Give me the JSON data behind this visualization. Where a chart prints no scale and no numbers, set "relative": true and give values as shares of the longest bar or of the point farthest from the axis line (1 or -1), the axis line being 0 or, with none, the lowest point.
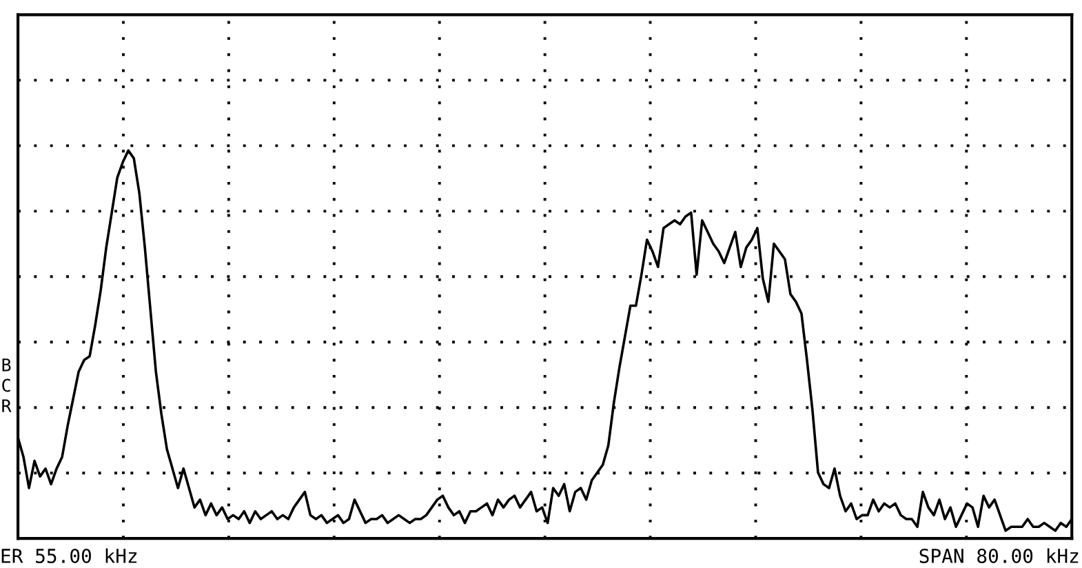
{
  "chart_data": {
    "type": "line",
    "relative": true,
    "grid": true,
    "line_style": "solid",
    "marker": "none",
    "annotations": [
      "B",
      "C",
      "R",
      "ER 55.00 kHz",
      "SPAN 80.00 kHz"
    ],
    "categories": [
      null,
      null,
      null,
      null,
      null,
      null,
      null,
      null,
      null,
      null,
      null,
      null,
      null,
      null,
      null,
      null,
      null,
      null,
      null,
      null,
      null,
      null,
      null,
      null,
      null,
      null,
      null,
      null,
      null,
      null,
      null,
      null,
      null,
      null,
      null,
      null,
      null,
      null,
      null,
      null,
      null,
      null,
      null,
      null,
      null,
      null,
      null,
      null,
      null,
      null,
      null,
      null,
      null,
      null,
      null,
      null,
      null,
      null,
      null,
      null,
      null,
      null,
      null,
      null,
      null,
      null,
      null,
      null,
      null,
      null,
      null,
      null,
      null,
      null,
      null,
      null,
      null,
      null,
      null,
      null,
      null,
      null,
      null,
      null,
      null,
      null,
      null,
      null,
      null,
      null,
      null,
      null,
      null,
      null,
      null,
      null,
      null,
      null,
      null,
      null,
      null,
      null,
      null,
      null,
      null,
      null,
      null,
      null,
      null,
      null,
      null,
      null,
      null,
      null,
      null,
      null,
      null,
      null,
      null,
      null,
      null,
      null,
      null,
      null,
      null,
      null,
      null,
      null,
      null,
      null,
      null,
      null,
      null,
      null,
      null,
      null,
      null,
      null,
      null,
      null,
      null,
      null,
      null,
      null,
      null,
      null,
      null,
      null,
      null,
      null,
      null,
      null,
      null,
      null,
      null,
      null,
      null,
      null,
      null,
      null,
      null,
      null,
      null,
      null,
      null,
      null,
      null,
      null,
      null,
      null,
      null,
      null,
      null,
      null,
      null,
      null,
      null,
      null,
      null,
      null,
      null,
      null,
      null,
      null,
      null,
      null,
      null,
      null,
      null,
      null,
      null,
      null
    ],
    "series": [
      {
        "color": "#000000",
        "values": [
          0.26,
          0.21,
          0.13,
          0.2,
          0.16,
          0.18,
          0.14,
          0.18,
          0.21,
          0.29,
          0.36,
          0.43,
          0.46,
          0.47,
          0.55,
          0.64,
          0.75,
          0.84,
          0.93,
          0.97,
          1.0,
          0.98,
          0.89,
          0.75,
          0.59,
          0.43,
          0.32,
          0.23,
          0.18,
          0.13,
          0.18,
          0.13,
          0.08,
          0.1,
          0.06,
          0.09,
          0.06,
          0.08,
          0.05,
          0.06,
          0.05,
          0.07,
          0.04,
          0.07,
          0.05,
          0.06,
          0.07,
          0.05,
          0.06,
          0.05,
          0.08,
          0.1,
          0.12,
          0.06,
          0.05,
          0.06,
          0.04,
          0.05,
          0.06,
          0.04,
          0.05,
          0.1,
          0.07,
          0.04,
          0.05,
          0.05,
          0.06,
          0.04,
          0.05,
          0.06,
          0.05,
          0.04,
          0.05,
          0.05,
          0.06,
          0.08,
          0.1,
          0.11,
          0.08,
          0.06,
          0.07,
          0.04,
          0.07,
          0.07,
          0.08,
          0.09,
          0.06,
          0.1,
          0.08,
          0.1,
          0.11,
          0.08,
          0.1,
          0.12,
          0.07,
          0.08,
          0.04,
          0.13,
          0.11,
          0.14,
          0.07,
          0.12,
          0.13,
          0.1,
          0.15,
          0.17,
          0.19,
          0.24,
          0.35,
          0.44,
          0.52,
          0.6,
          0.6,
          0.68,
          0.77,
          0.74,
          0.7,
          0.8,
          0.81,
          0.82,
          0.81,
          0.83,
          0.84,
          0.68,
          0.82,
          0.79,
          0.76,
          0.74,
          0.71,
          0.75,
          0.79,
          0.7,
          0.75,
          0.77,
          0.8,
          0.67,
          0.61,
          0.76,
          0.74,
          0.72,
          0.63,
          0.61,
          0.58,
          0.46,
          0.33,
          0.17,
          0.14,
          0.13,
          0.18,
          0.11,
          0.07,
          0.09,
          0.05,
          0.06,
          0.06,
          0.1,
          0.07,
          0.09,
          0.08,
          0.09,
          0.06,
          0.05,
          0.05,
          0.03,
          0.12,
          0.08,
          0.06,
          0.1,
          0.05,
          0.08,
          0.03,
          0.06,
          0.09,
          0.08,
          0.03,
          0.11,
          0.08,
          0.1,
          0.06,
          0.02,
          0.03,
          0.03,
          0.03,
          0.05,
          0.03,
          0.03,
          0.04,
          0.03,
          0.02,
          0.04,
          0.03,
          0.05
        ]
      }
    ]
  }
}
